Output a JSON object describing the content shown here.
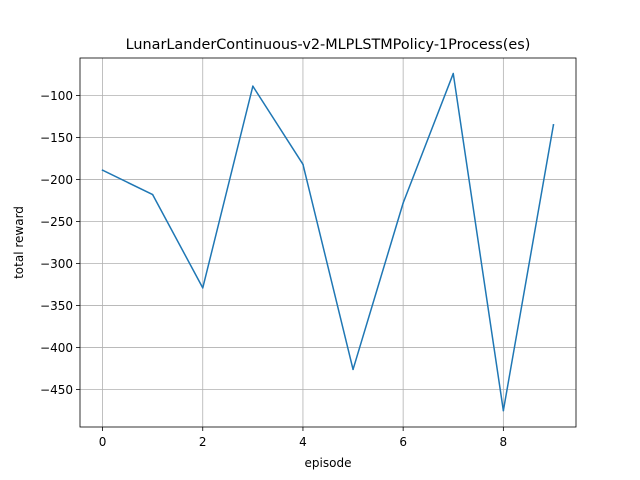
{
  "chart_data": {
    "type": "line",
    "title": "LunarLanderContinuous-v2-MLPLSTMPolicy-1Process(es)",
    "xlabel": "episode",
    "ylabel": "total reward",
    "x": [
      0,
      1,
      2,
      3,
      4,
      5,
      6,
      7,
      8,
      9
    ],
    "series": [
      {
        "values": [
          -189,
          -218,
          -329,
          -89,
          -182,
          -426,
          -228,
          -74,
          -475,
          -135
        ],
        "color": "#1f77b4"
      }
    ],
    "xlim": [
      -0.45,
      9.45
    ],
    "ylim": [
      -494.5,
      -55.5
    ],
    "xticks": [
      0,
      2,
      4,
      6,
      8
    ],
    "yticks": [
      -450,
      -400,
      -350,
      -300,
      -250,
      -200,
      -150,
      -100
    ],
    "grid": true,
    "legend": "none"
  }
}
